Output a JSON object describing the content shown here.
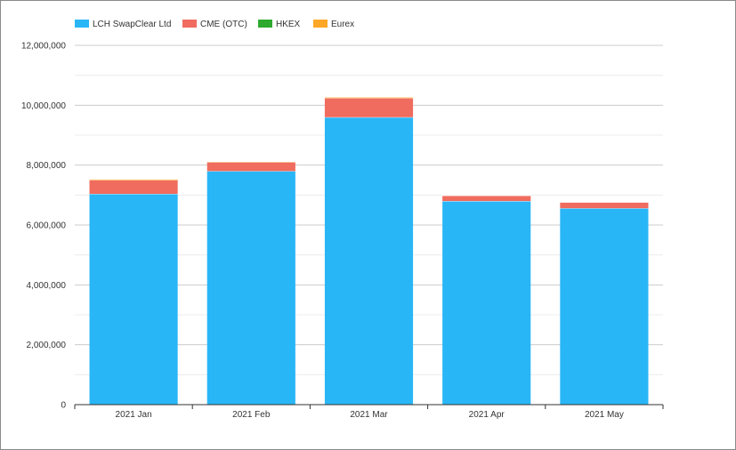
{
  "chart_data": {
    "type": "bar",
    "stacked": true,
    "title": "",
    "xlabel": "",
    "ylabel": "",
    "categories": [
      "2021 Jan",
      "2021 Feb",
      "2021 Mar",
      "2021 Apr",
      "2021 May"
    ],
    "series": [
      {
        "name": "LCH SwapClear Ltd",
        "color": "#29b6f6",
        "values": [
          7040000,
          7800000,
          9600000,
          6800000,
          6560000
        ]
      },
      {
        "name": "CME (OTC)",
        "color": "#ef6c5f",
        "values": [
          460000,
          300000,
          640000,
          180000,
          200000
        ]
      },
      {
        "name": "HKEX",
        "color": "#2eaa2e",
        "values": [
          0,
          0,
          0,
          0,
          0
        ]
      },
      {
        "name": "Eurex",
        "color": "#ffa726",
        "values": [
          30000,
          20000,
          30000,
          10000,
          10000
        ]
      }
    ],
    "ylim": [
      0,
      12000000
    ],
    "yticks": [
      0,
      2000000,
      4000000,
      6000000,
      8000000,
      10000000,
      12000000
    ],
    "ytick_labels": [
      "0",
      "2,000,000",
      "4,000,000",
      "6,000,000",
      "8,000,000",
      "10,000,000",
      "12,000,000"
    ],
    "grid": true,
    "legend_position": "top-left"
  }
}
